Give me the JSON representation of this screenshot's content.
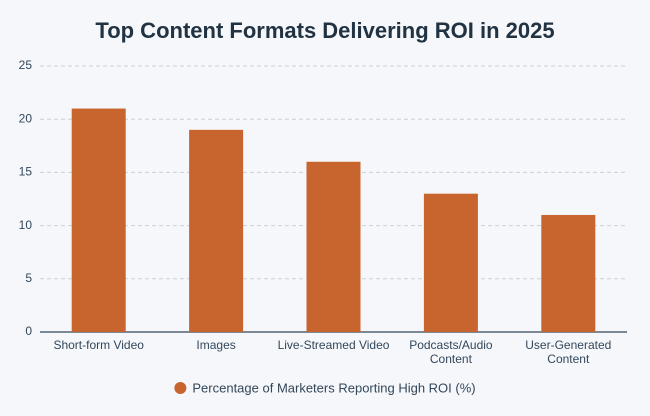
{
  "chart_data": {
    "type": "bar",
    "title": "Top Content Formats Delivering ROI in 2025",
    "categories": [
      "Short-form Video",
      "Images",
      "Live-Streamed Video",
      "Podcasts/Audio Content",
      "User-Generated Content"
    ],
    "series": [
      {
        "name": "Percentage of Marketers Reporting High ROI (%)",
        "color": "#c8652f",
        "values": [
          21,
          19,
          16,
          13,
          11
        ]
      }
    ],
    "ylim": [
      0,
      25
    ],
    "yticks": [
      0,
      5,
      10,
      15,
      20,
      25
    ],
    "grid": true,
    "legend": "bottom"
  }
}
